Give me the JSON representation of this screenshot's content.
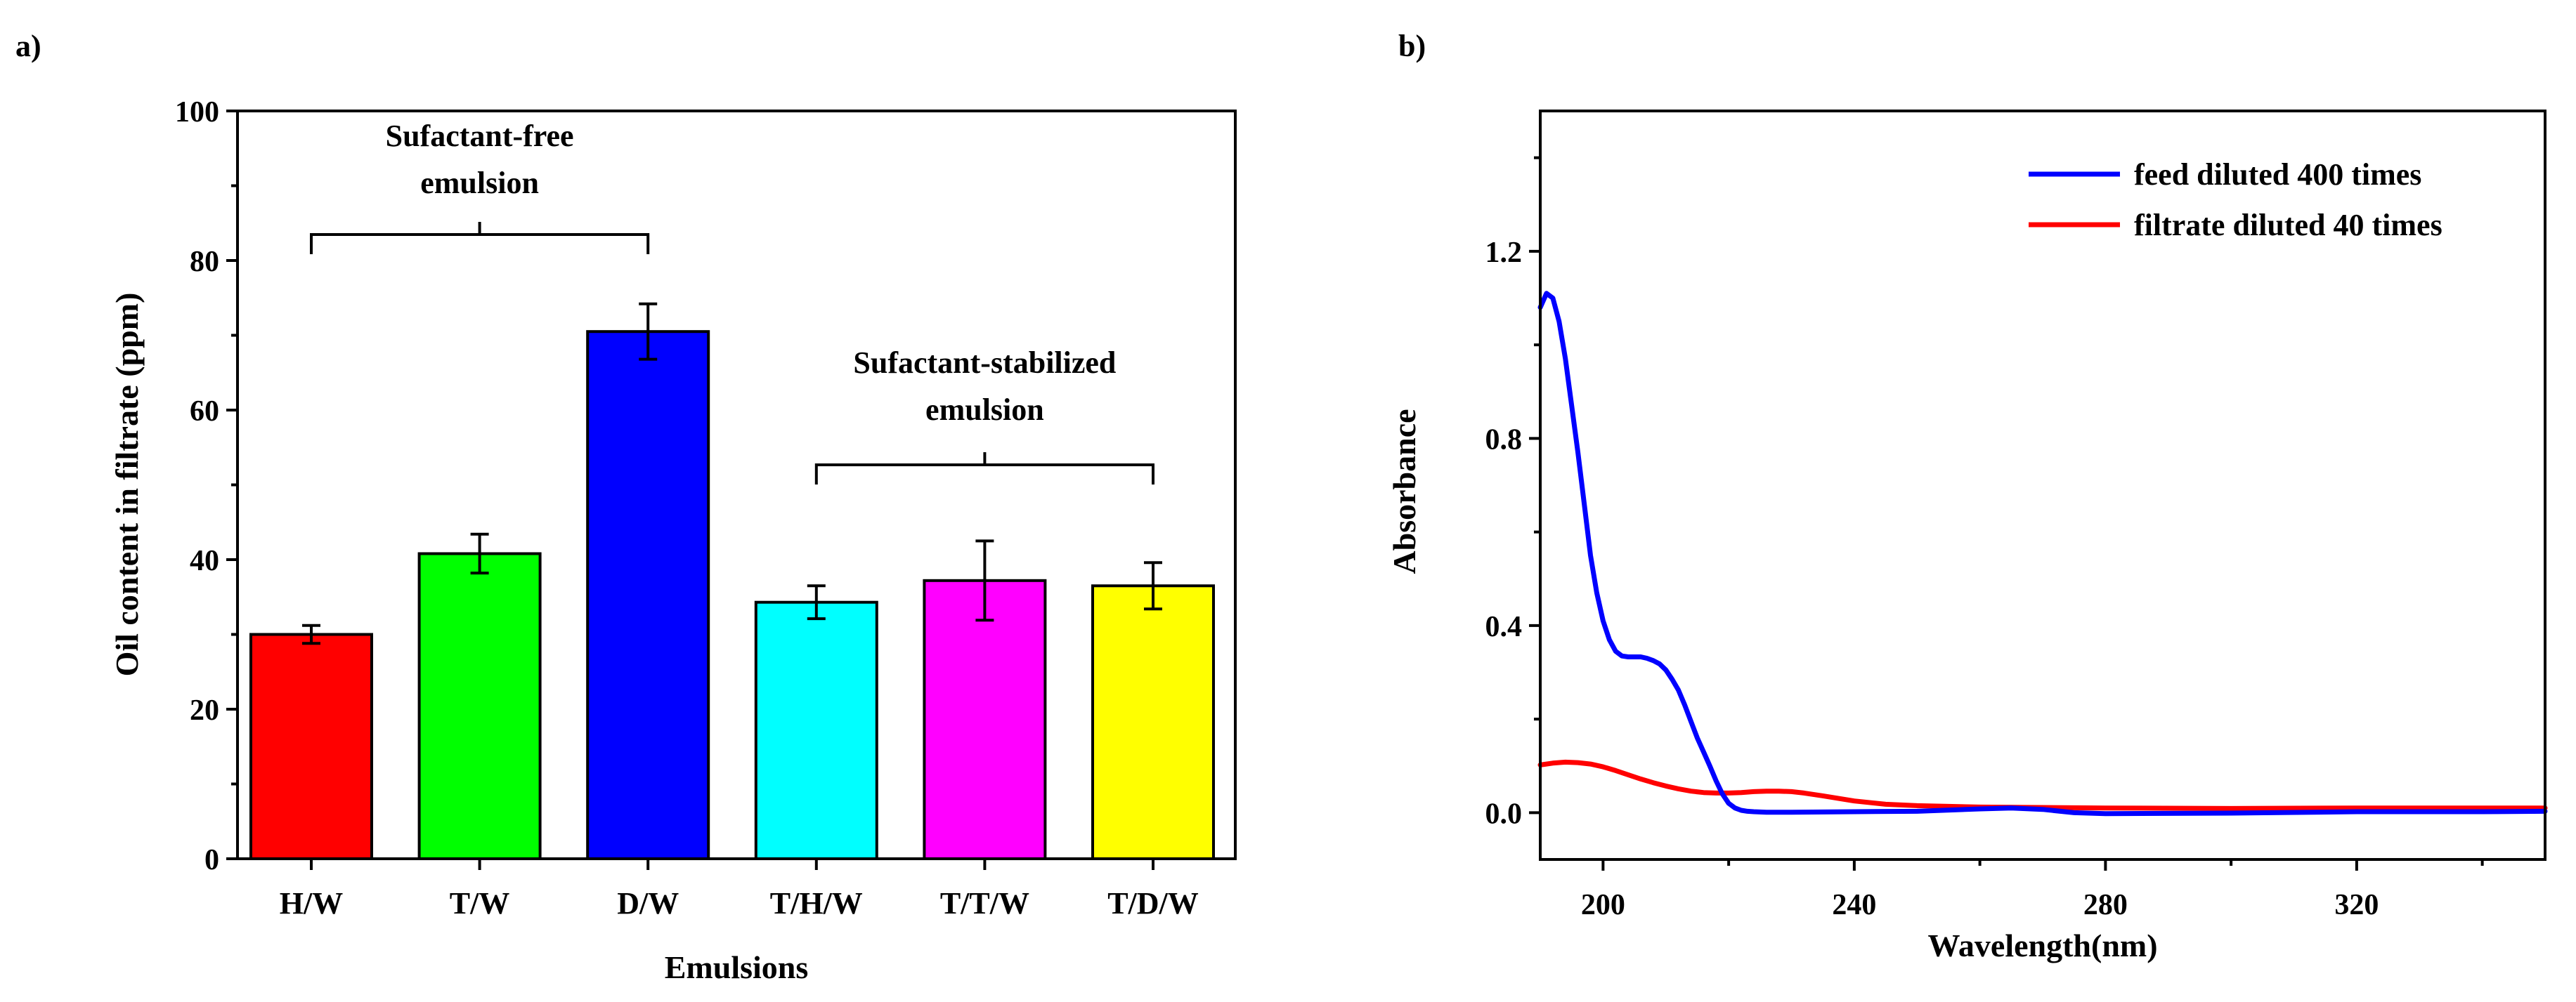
{
  "chart_data": [
    {
      "panel_label": "a)",
      "type": "bar",
      "xlabel": "Emulsions",
      "ylabel": "Oil content in filtrate (ppm)",
      "ylim": [
        0,
        100
      ],
      "yticks": [
        0,
        20,
        40,
        60,
        80,
        100
      ],
      "categories": [
        "H/W",
        "T/W",
        "D/W",
        "T/H/W",
        "T/T/W",
        "T/D/W"
      ],
      "values": [
        30,
        40.8,
        70.5,
        34.3,
        37.2,
        36.5
      ],
      "errors": [
        1.2,
        2.6,
        3.7,
        2.2,
        5.3,
        3.1
      ],
      "colors": [
        "#ff0000",
        "#00ff00",
        "#0000ff",
        "#00ffff",
        "#ff00ff",
        "#ffff00"
      ],
      "annotations": [
        {
          "lines": [
            "Sufactant-free",
            "emulsion"
          ],
          "groups": [
            0,
            2
          ]
        },
        {
          "lines": [
            "Sufactant-stabilized",
            "emulsion"
          ],
          "groups": [
            3,
            5
          ]
        }
      ]
    },
    {
      "panel_label": "b)",
      "type": "line",
      "xlabel": "Wavelength(nm)",
      "ylabel": "Absorbance",
      "xlim": [
        190,
        350
      ],
      "ylim": [
        -0.1,
        1.5
      ],
      "xticks": [
        200,
        240,
        280,
        320
      ],
      "yticks": [
        0.0,
        0.4,
        0.8,
        1.2
      ],
      "ytick_labels": [
        "0.0",
        "0.4",
        "0.8",
        "1.2"
      ],
      "legend_position": "top-right",
      "series": [
        {
          "name": "feed diluted 400 times",
          "color": "#0000ff",
          "x": [
            190,
            191,
            192,
            193,
            194,
            195,
            196,
            197,
            198,
            199,
            200,
            201,
            202,
            203,
            204,
            205,
            206,
            207,
            208,
            209,
            210,
            211,
            212,
            213,
            214,
            215,
            216,
            217,
            218,
            219,
            220,
            221,
            222,
            223,
            224,
            226,
            230,
            240,
            250,
            260,
            265,
            270,
            275,
            280,
            300,
            320,
            340,
            350
          ],
          "y": [
            1.08,
            1.11,
            1.1,
            1.05,
            0.97,
            0.87,
            0.77,
            0.66,
            0.55,
            0.47,
            0.41,
            0.37,
            0.345,
            0.335,
            0.333,
            0.333,
            0.333,
            0.33,
            0.325,
            0.318,
            0.305,
            0.285,
            0.262,
            0.23,
            0.195,
            0.16,
            0.13,
            0.1,
            0.068,
            0.04,
            0.02,
            0.01,
            0.005,
            0.003,
            0.002,
            0.001,
            0.001,
            0.002,
            0.003,
            0.008,
            0.01,
            0.007,
            0.0,
            -0.002,
            -0.001,
            0.002,
            0.002,
            0.003
          ]
        },
        {
          "name": "filtrate diluted 40 times",
          "color": "#ff0000",
          "x": [
            190,
            192,
            194,
            196,
            198,
            200,
            202,
            204,
            206,
            208,
            210,
            212,
            214,
            216,
            218,
            220,
            222,
            224,
            226,
            228,
            230,
            232,
            235,
            240,
            245,
            250,
            260,
            280,
            300,
            320,
            340,
            350
          ],
          "y": [
            0.102,
            0.106,
            0.108,
            0.107,
            0.104,
            0.098,
            0.09,
            0.081,
            0.072,
            0.064,
            0.057,
            0.051,
            0.046,
            0.043,
            0.042,
            0.042,
            0.043,
            0.045,
            0.046,
            0.046,
            0.045,
            0.042,
            0.036,
            0.025,
            0.018,
            0.015,
            0.012,
            0.01,
            0.009,
            0.01,
            0.01,
            0.01
          ]
        }
      ]
    }
  ]
}
